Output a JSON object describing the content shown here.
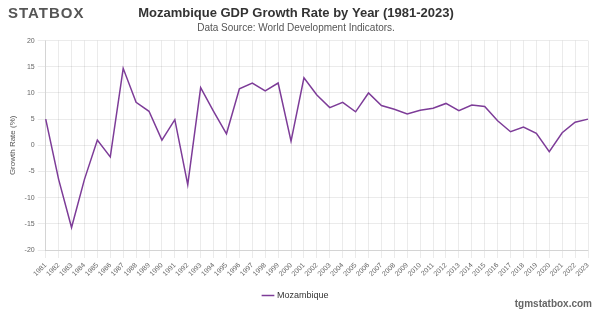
{
  "chart_data": {
    "type": "line",
    "title": "Mozambique GDP Growth Rate by Year (1981-2023)",
    "subtitle": "Data Source: World Development Indicators.",
    "y_label": "Growth Rate (%)",
    "annotations": [
      "STATBOX",
      "tgmstatbox.com"
    ],
    "categories": [
      "1981",
      "1982",
      "1983",
      "1984",
      "1985",
      "1986",
      "1987",
      "1988",
      "1989",
      "1990",
      "1991",
      "1992",
      "1993",
      "1994",
      "1995",
      "1996",
      "1997",
      "1998",
      "1999",
      "2000",
      "2001",
      "2002",
      "2003",
      "2004",
      "2005",
      "2006",
      "2007",
      "2008",
      "2009",
      "2010",
      "2011",
      "2012",
      "2013",
      "2014",
      "2015",
      "2016",
      "2017",
      "2018",
      "2019",
      "2020",
      "2021",
      "2022",
      "2023"
    ],
    "series": [
      {
        "name": "Mozambique",
        "color": "#7d3c98",
        "values": [
          5.0,
          -6.5,
          -15.7,
          -6.5,
          1.0,
          -2.2,
          14.7,
          8.2,
          6.5,
          1.0,
          4.9,
          -7.5,
          11.0,
          6.5,
          2.2,
          10.8,
          11.9,
          10.4,
          11.9,
          0.8,
          12.9,
          9.6,
          7.2,
          8.2,
          6.4,
          10.0,
          7.6,
          6.9,
          6.0,
          6.7,
          7.1,
          8.0,
          6.6,
          7.7,
          7.4,
          4.7,
          2.6,
          3.5,
          2.3,
          -1.2,
          2.4,
          4.4,
          5.0
        ]
      }
    ],
    "ylim": [
      -20,
      20
    ],
    "yticks": [
      -20,
      -15,
      -10,
      -5,
      0,
      5,
      10,
      15,
      20
    ],
    "grid": true,
    "legend": "bottom"
  }
}
